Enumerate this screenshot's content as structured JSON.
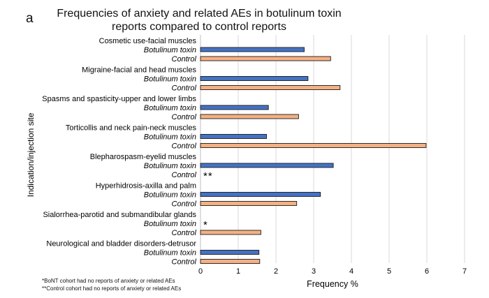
{
  "panel_label": "a",
  "footnotes": [
    "*BoNT cohort had no reports of anxiety or related AEs",
    "**Control cohort had no reports of anxiety or related AEs"
  ],
  "chart_data": {
    "type": "bar",
    "orientation": "horizontal",
    "title": "Frequencies of anxiety and related AEs in botulinum toxin reports compared to control reports",
    "xlabel": "Frequency %",
    "ylabel": "Indication/injection site",
    "xlim": [
      0,
      7
    ],
    "xticks": [
      0,
      1,
      2,
      3,
      4,
      5,
      6,
      7
    ],
    "grid": "vertical",
    "colors": {
      "botulinum": "#4472C4",
      "control": "#F4B183",
      "outline": "#1a1a1a"
    },
    "groups": [
      {
        "name": "Cosmetic use-facial muscles",
        "botulinum": 2.75,
        "control": 3.45,
        "botulinum_mark": "",
        "control_mark": ""
      },
      {
        "name": "Migraine-facial and head muscles",
        "botulinum": 2.85,
        "control": 3.7,
        "botulinum_mark": "",
        "control_mark": ""
      },
      {
        "name": "Spasms and spasticity-upper and lower limbs",
        "botulinum": 1.8,
        "control": 2.6,
        "botulinum_mark": "",
        "control_mark": ""
      },
      {
        "name": "Torticollis and neck pain-neck muscles",
        "botulinum": 1.75,
        "control": 5.98,
        "botulinum_mark": "",
        "control_mark": ""
      },
      {
        "name": "Blepharospasm-eyelid muscles",
        "botulinum": 3.52,
        "control": 0,
        "botulinum_mark": "",
        "control_mark": "**"
      },
      {
        "name": "Hyperhidrosis-axilla and palm",
        "botulinum": 3.18,
        "control": 2.55,
        "botulinum_mark": "",
        "control_mark": ""
      },
      {
        "name": "Sialorrhea-parotid and submandibular glands",
        "botulinum": 0,
        "control": 1.6,
        "botulinum_mark": "*",
        "control_mark": ""
      },
      {
        "name": "Neurological and bladder disorders-detrusor",
        "botulinum": 1.55,
        "control": 1.57,
        "botulinum_mark": "",
        "control_mark": ""
      }
    ],
    "bar_labels": {
      "botulinum": "Botulinum toxin",
      "control": "Control"
    }
  }
}
